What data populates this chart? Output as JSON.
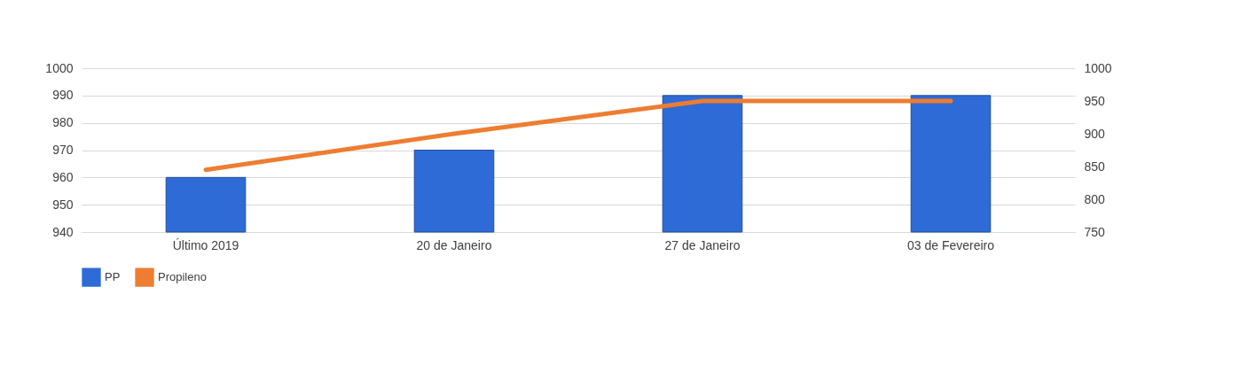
{
  "chart_data": {
    "type": "bar",
    "categories": [
      "Último 2019",
      "20 de Janeiro",
      "27 de Janeiro",
      "03 de Fevereiro"
    ],
    "series": [
      {
        "name": "PP",
        "color": "#2e6bd6",
        "values": [
          960,
          970,
          990,
          990
        ]
      },
      {
        "name": "Propileno",
        "type": "line",
        "axis": "y2",
        "color": "#ed7d31",
        "values": [
          845,
          900,
          950,
          950
        ]
      }
    ],
    "ylim": [
      940,
      1000
    ],
    "yticks": [
      940,
      950,
      960,
      970,
      980,
      990,
      1000
    ],
    "y2lim": [
      750,
      1000
    ],
    "y2ticks": [
      750,
      800,
      850,
      900,
      950,
      1000
    ],
    "grid": "y",
    "legend": "bottom"
  }
}
